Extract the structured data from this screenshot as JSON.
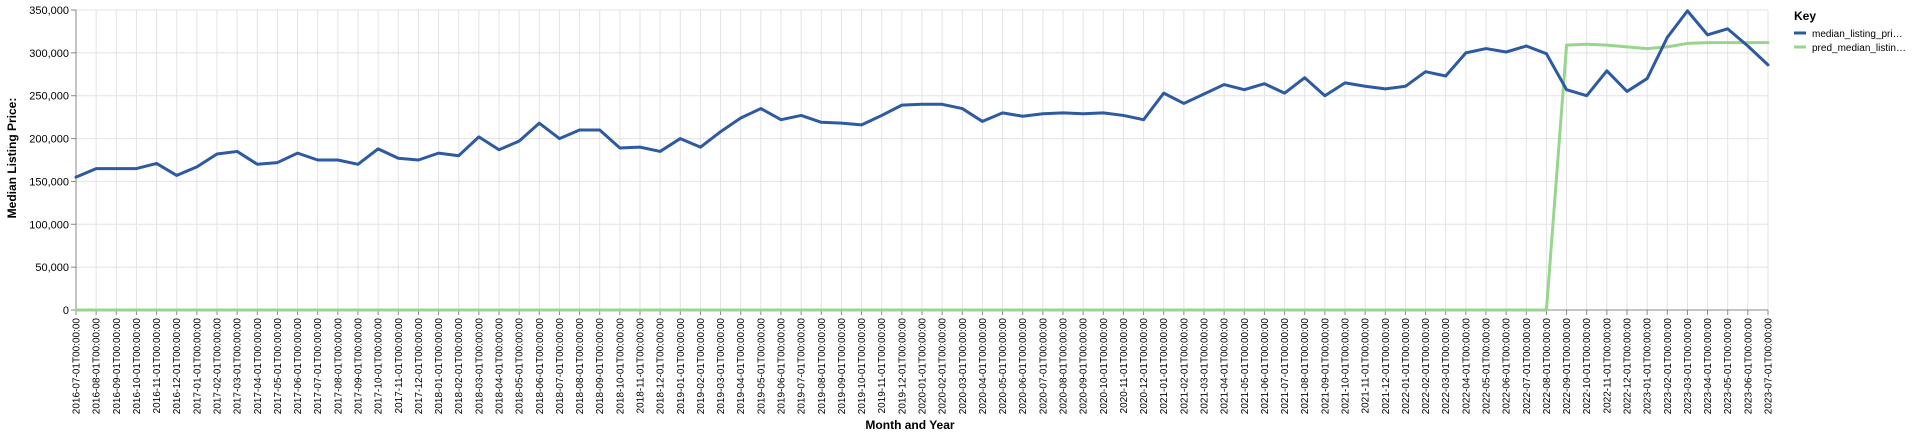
{
  "chart_data": {
    "type": "line",
    "xlabel": "Month and Year",
    "ylabel": "Median Listing Price:",
    "ylim": [
      0,
      350000
    ],
    "y_ticks": [
      0,
      50000,
      100000,
      150000,
      200000,
      250000,
      300000,
      350000
    ],
    "y_tick_labels": [
      "0",
      "50,000",
      "100,000",
      "150,000",
      "200,000",
      "250,000",
      "300,000",
      "350,000"
    ],
    "grid": true,
    "legend": {
      "title": "Key",
      "placement": "top-right"
    },
    "x": [
      "2016-07-01T00:00:00",
      "2016-08-01T00:00:00",
      "2016-09-01T00:00:00",
      "2016-10-01T00:00:00",
      "2016-11-01T00:00:00",
      "2016-12-01T00:00:00",
      "2017-01-01T00:00:00",
      "2017-02-01T00:00:00",
      "2017-03-01T00:00:00",
      "2017-04-01T00:00:00",
      "2017-05-01T00:00:00",
      "2017-06-01T00:00:00",
      "2017-07-01T00:00:00",
      "2017-08-01T00:00:00",
      "2017-09-01T00:00:00",
      "2017-10-01T00:00:00",
      "2017-11-01T00:00:00",
      "2017-12-01T00:00:00",
      "2018-01-01T00:00:00",
      "2018-02-01T00:00:00",
      "2018-03-01T00:00:00",
      "2018-04-01T00:00:00",
      "2018-05-01T00:00:00",
      "2018-06-01T00:00:00",
      "2018-07-01T00:00:00",
      "2018-08-01T00:00:00",
      "2018-09-01T00:00:00",
      "2018-10-01T00:00:00",
      "2018-11-01T00:00:00",
      "2018-12-01T00:00:00",
      "2019-01-01T00:00:00",
      "2019-02-01T00:00:00",
      "2019-03-01T00:00:00",
      "2019-04-01T00:00:00",
      "2019-05-01T00:00:00",
      "2019-06-01T00:00:00",
      "2019-07-01T00:00:00",
      "2019-08-01T00:00:00",
      "2019-09-01T00:00:00",
      "2019-10-01T00:00:00",
      "2019-11-01T00:00:00",
      "2019-12-01T00:00:00",
      "2020-01-01T00:00:00",
      "2020-02-01T00:00:00",
      "2020-03-01T00:00:00",
      "2020-04-01T00:00:00",
      "2020-05-01T00:00:00",
      "2020-06-01T00:00:00",
      "2020-07-01T00:00:00",
      "2020-08-01T00:00:00",
      "2020-09-01T00:00:00",
      "2020-10-01T00:00:00",
      "2020-11-01T00:00:00",
      "2020-12-01T00:00:00",
      "2021-01-01T00:00:00",
      "2021-02-01T00:00:00",
      "2021-03-01T00:00:00",
      "2021-04-01T00:00:00",
      "2021-05-01T00:00:00",
      "2021-06-01T00:00:00",
      "2021-07-01T00:00:00",
      "2021-08-01T00:00:00",
      "2021-09-01T00:00:00",
      "2021-10-01T00:00:00",
      "2021-11-01T00:00:00",
      "2021-12-01T00:00:00",
      "2022-01-01T00:00:00",
      "2022-02-01T00:00:00",
      "2022-03-01T00:00:00",
      "2022-04-01T00:00:00",
      "2022-05-01T00:00:00",
      "2022-06-01T00:00:00",
      "2022-07-01T00:00:00",
      "2022-08-01T00:00:00",
      "2022-09-01T00:00:00",
      "2022-10-01T00:00:00",
      "2022-11-01T00:00:00",
      "2022-12-01T00:00:00",
      "2023-01-01T00:00:00",
      "2023-02-01T00:00:00",
      "2023-03-01T00:00:00",
      "2023-04-01T00:00:00",
      "2023-05-01T00:00:00",
      "2023-06-01T00:00:00",
      "2023-07-01T00:00:00"
    ],
    "series": [
      {
        "name": "median_listing_pri…",
        "color": "#2d5aa0",
        "values": [
          155000,
          165000,
          165000,
          165000,
          171000,
          157000,
          167000,
          182000,
          185000,
          170000,
          172000,
          183000,
          175000,
          175000,
          170000,
          188000,
          177000,
          175000,
          183000,
          180000,
          202000,
          187000,
          197000,
          218000,
          200000,
          210000,
          210000,
          189000,
          190000,
          185000,
          200000,
          190000,
          208000,
          224000,
          235000,
          222000,
          227000,
          219000,
          218000,
          216000,
          227000,
          239000,
          240000,
          240000,
          235000,
          220000,
          230000,
          226000,
          229000,
          230000,
          229000,
          230000,
          227000,
          222000,
          253000,
          241000,
          252000,
          263000,
          257000,
          264000,
          253000,
          271000,
          250000,
          265000,
          261000,
          258000,
          261000,
          278000,
          273000,
          300000,
          305000,
          301000,
          308000,
          299000,
          257000,
          250000,
          279000,
          255000,
          270000,
          318000,
          349000,
          321000,
          328000,
          308000,
          286000
        ]
      },
      {
        "name": "pred_median_listin…",
        "color": "#98d68e",
        "values": [
          0,
          0,
          0,
          0,
          0,
          0,
          0,
          0,
          0,
          0,
          0,
          0,
          0,
          0,
          0,
          0,
          0,
          0,
          0,
          0,
          0,
          0,
          0,
          0,
          0,
          0,
          0,
          0,
          0,
          0,
          0,
          0,
          0,
          0,
          0,
          0,
          0,
          0,
          0,
          0,
          0,
          0,
          0,
          0,
          0,
          0,
          0,
          0,
          0,
          0,
          0,
          0,
          0,
          0,
          0,
          0,
          0,
          0,
          0,
          0,
          0,
          0,
          0,
          0,
          0,
          0,
          0,
          0,
          0,
          0,
          0,
          0,
          0,
          0,
          309000,
          310000,
          309000,
          307000,
          305000,
          307000,
          311000,
          312000,
          312000,
          312000,
          312000
        ]
      }
    ]
  }
}
